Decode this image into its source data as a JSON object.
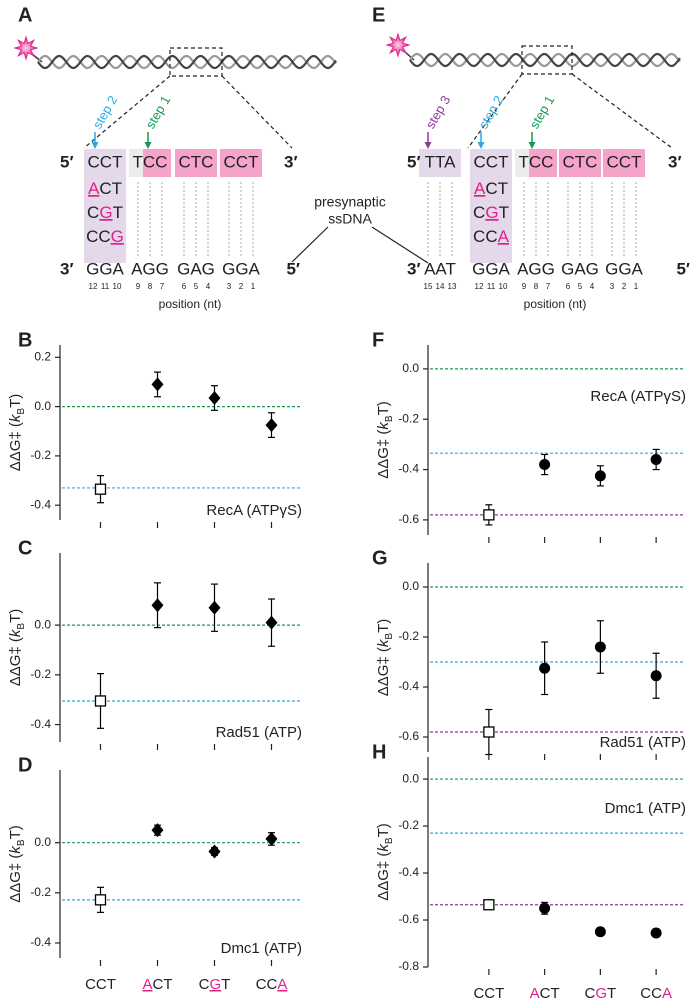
{
  "diagrams": [
    {
      "panel": "A",
      "five_prime": "5′",
      "three_prime": "3′",
      "steps": [
        {
          "text": "step 2",
          "color": "#29abe2"
        },
        {
          "text": "step 1",
          "color": "#1a9850"
        }
      ],
      "top": [
        "CCT",
        "TCC",
        "CTC",
        "CCT"
      ],
      "variant_column": 0,
      "variants": [
        "ACT",
        "CGT",
        "CCG"
      ],
      "variant_mismatch": [
        0,
        1,
        2
      ],
      "bottom": [
        "GGA",
        "AGG",
        "GAG",
        "GGA"
      ],
      "positions": [
        [
          12,
          11,
          10
        ],
        [
          9,
          8,
          7
        ],
        [
          6,
          5,
          4
        ],
        [
          3,
          2,
          1
        ]
      ],
      "xlabel": "position (nt)"
    },
    {
      "panel": "E",
      "five_prime": "5′",
      "three_prime": "3′",
      "steps": [
        {
          "text": "step 3",
          "color": "#8e3b97"
        },
        {
          "text": "step 2",
          "color": "#29abe2"
        },
        {
          "text": "step 1",
          "color": "#1a9850"
        }
      ],
      "top": [
        "TTA",
        "CCT",
        "TCC",
        "CTC",
        "CCT"
      ],
      "variant_column": 1,
      "variants": [
        "ACT",
        "CGT",
        "CCA"
      ],
      "variant_mismatch": [
        0,
        1,
        2
      ],
      "bottom": [
        "AAT",
        "GGA",
        "AGG",
        "GAG",
        "GGA"
      ],
      "positions": [
        [
          15,
          14,
          13
        ],
        [
          12,
          11,
          10
        ],
        [
          9,
          8,
          7
        ],
        [
          6,
          5,
          4
        ],
        [
          3,
          2,
          1
        ]
      ],
      "xlabel": "position (nt)"
    }
  ],
  "highlight_color": "#e0218a",
  "presynaptic_label": [
    "presynaptic",
    "ssDNA"
  ],
  "chart_data": [
    {
      "type": "scatter",
      "panel": "B",
      "label": "RecA (ATPγS)",
      "legend_position": "lower right",
      "ylabel": [
        "ΔΔG‡ (",
        "k",
        "B",
        "T)"
      ],
      "categories": [
        null,
        null,
        null,
        null
      ],
      "values": [
        -0.335,
        0.09,
        0.035,
        -0.075
      ],
      "errors": [
        0.055,
        0.05,
        0.05,
        0.05
      ],
      "markers": [
        "open-square",
        "diamond",
        "diamond",
        "diamond"
      ],
      "color": "#000000",
      "ylim": [
        -0.46,
        0.25
      ],
      "yticks": [
        0.2,
        {
          "value": 0,
          "label": "0.0"
        },
        -0.2,
        -0.4
      ],
      "hlines": [
        {
          "value": 0,
          "color": "#1a9850"
        },
        {
          "value": -0.33,
          "color": "#29abe2"
        }
      ]
    },
    {
      "type": "scatter",
      "panel": "C",
      "label": "Rad51 (ATP)",
      "legend_position": "lower right",
      "ylabel": [
        "ΔΔG‡ (",
        "k",
        "B",
        "T)"
      ],
      "categories": [
        null,
        null,
        null,
        null
      ],
      "values": [
        -0.305,
        0.08,
        0.07,
        0.01
      ],
      "errors": [
        0.11,
        0.09,
        0.095,
        0.095
      ],
      "markers": [
        "open-square",
        "diamond",
        "diamond",
        "diamond"
      ],
      "color": "#000000",
      "ylim": [
        -0.47,
        0.29
      ],
      "yticks": [
        {
          "value": 0,
          "label": "0.0"
        },
        -0.2,
        -0.4
      ],
      "hlines": [
        {
          "value": 0,
          "color": "#1a9850"
        },
        {
          "value": -0.305,
          "color": "#29abe2"
        }
      ]
    },
    {
      "type": "scatter",
      "panel": "D",
      "label": "Dmc1 (ATP)",
      "legend_position": "lower right",
      "ylabel": [
        "ΔΔG‡ (",
        "k",
        "B",
        "T)"
      ],
      "categories": [
        "CCT",
        "ACT",
        "CGT",
        "CCA"
      ],
      "highlight": [
        null,
        0,
        1,
        2
      ],
      "values": [
        -0.228,
        0.05,
        -0.035,
        0.015
      ],
      "errors": [
        0.05,
        0.02,
        0.015,
        0.025
      ],
      "markers": [
        "open-square",
        "diamond",
        "diamond",
        "diamond"
      ],
      "color": "#000000",
      "ylim": [
        -0.46,
        0.29
      ],
      "yticks": [
        {
          "value": 0,
          "label": "0.0"
        },
        -0.2,
        -0.4
      ],
      "hlines": [
        {
          "value": 0,
          "color": "#1a9850"
        },
        {
          "value": -0.228,
          "color": "#29abe2"
        }
      ]
    },
    {
      "type": "scatter",
      "panel": "F",
      "label": "RecA (ATPγS)",
      "legend_position": "upper right",
      "ylabel": [
        "ΔΔG‡ (",
        "k",
        "B",
        "T)"
      ],
      "categories": [
        null,
        null,
        null,
        null
      ],
      "values": [
        -0.58,
        -0.38,
        -0.425,
        -0.36
      ],
      "errors": [
        0.04,
        0.04,
        0.04,
        0.04
      ],
      "markers": [
        "open-square",
        "circle",
        "circle",
        "circle"
      ],
      "color": "#000000",
      "ylim": [
        -0.66,
        0.095
      ],
      "yticks": [
        {
          "value": 0,
          "label": "0.0"
        },
        -0.2,
        -0.4,
        -0.6
      ],
      "hlines": [
        {
          "value": 0,
          "color": "#1a9850"
        },
        {
          "value": -0.335,
          "color": "#29abe2"
        },
        {
          "value": -0.58,
          "color": "#8e3b97"
        }
      ]
    },
    {
      "type": "scatter",
      "panel": "G",
      "label": "Rad51 (ATP)",
      "legend_position": "lower right",
      "ylabel": [
        "ΔΔG‡ (",
        "k",
        "B",
        "T)"
      ],
      "categories": [
        null,
        null,
        null,
        null
      ],
      "values": [
        -0.58,
        -0.325,
        -0.24,
        -0.355
      ],
      "errors": [
        0.09,
        0.105,
        0.105,
        0.09
      ],
      "markers": [
        "open-square",
        "circle",
        "circle",
        "circle"
      ],
      "color": "#000000",
      "ylim": [
        -0.66,
        0.096
      ],
      "yticks": [
        {
          "value": 0,
          "label": "0.0"
        },
        -0.2,
        -0.4,
        -0.6
      ],
      "hlines": [
        {
          "value": 0,
          "color": "#1a9850"
        },
        {
          "value": -0.3,
          "color": "#29abe2"
        },
        {
          "value": -0.58,
          "color": "#8e3b97"
        }
      ]
    },
    {
      "type": "scatter",
      "panel": "H",
      "label": "Dmc1 (ATP)",
      "legend_position": "upper right",
      "ylabel": [
        "ΔΔG‡ (",
        "k",
        "B",
        "T)"
      ],
      "categories": [
        "CCT",
        "ACT",
        "CGT",
        "CCA"
      ],
      "highlight": [
        null,
        0,
        1,
        2
      ],
      "values": [
        -0.535,
        -0.55,
        -0.65,
        -0.655
      ],
      "errors": [
        0.01,
        0.025,
        0.01,
        0.01
      ],
      "markers": [
        "open-square",
        "circle",
        "circle",
        "circle"
      ],
      "color": "#000000",
      "ylim": [
        -0.8,
        0.094
      ],
      "yticks": [
        {
          "value": 0,
          "label": "0.0"
        },
        -0.2,
        -0.4,
        -0.6,
        -0.8
      ],
      "hlines": [
        {
          "value": 0,
          "color": "#1a9850"
        },
        {
          "value": -0.23,
          "color": "#29abe2"
        },
        {
          "value": -0.535,
          "color": "#8e3b97"
        }
      ]
    }
  ]
}
